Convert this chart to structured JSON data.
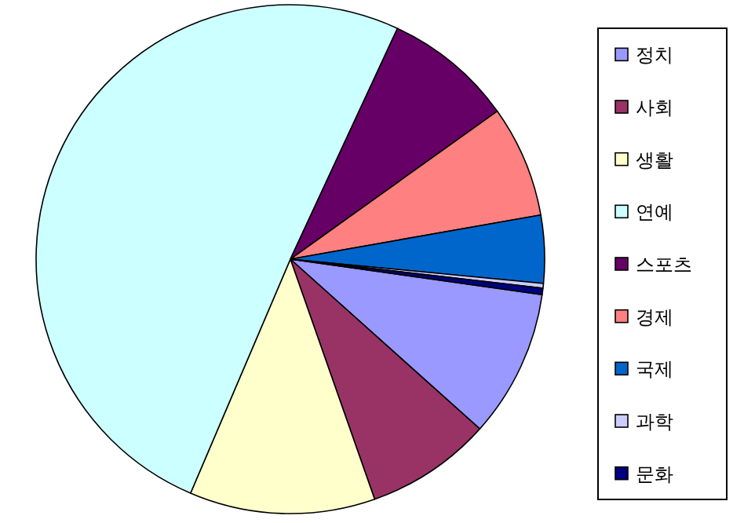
{
  "chart_data": {
    "type": "pie",
    "categories": [
      "정치",
      "사회",
      "생활",
      "연예",
      "스포츠",
      "경제",
      "국제",
      "과학",
      "문화"
    ],
    "values": [
      9.4,
      8.0,
      11.8,
      50.5,
      8.2,
      7.1,
      4.3,
      0.3,
      0.4
    ],
    "colors": [
      "#9999ff",
      "#993366",
      "#ffffcc",
      "#ccffff",
      "#660066",
      "#ff8080",
      "#0066cc",
      "#ccccff",
      "#000080"
    ],
    "legend": "right"
  }
}
